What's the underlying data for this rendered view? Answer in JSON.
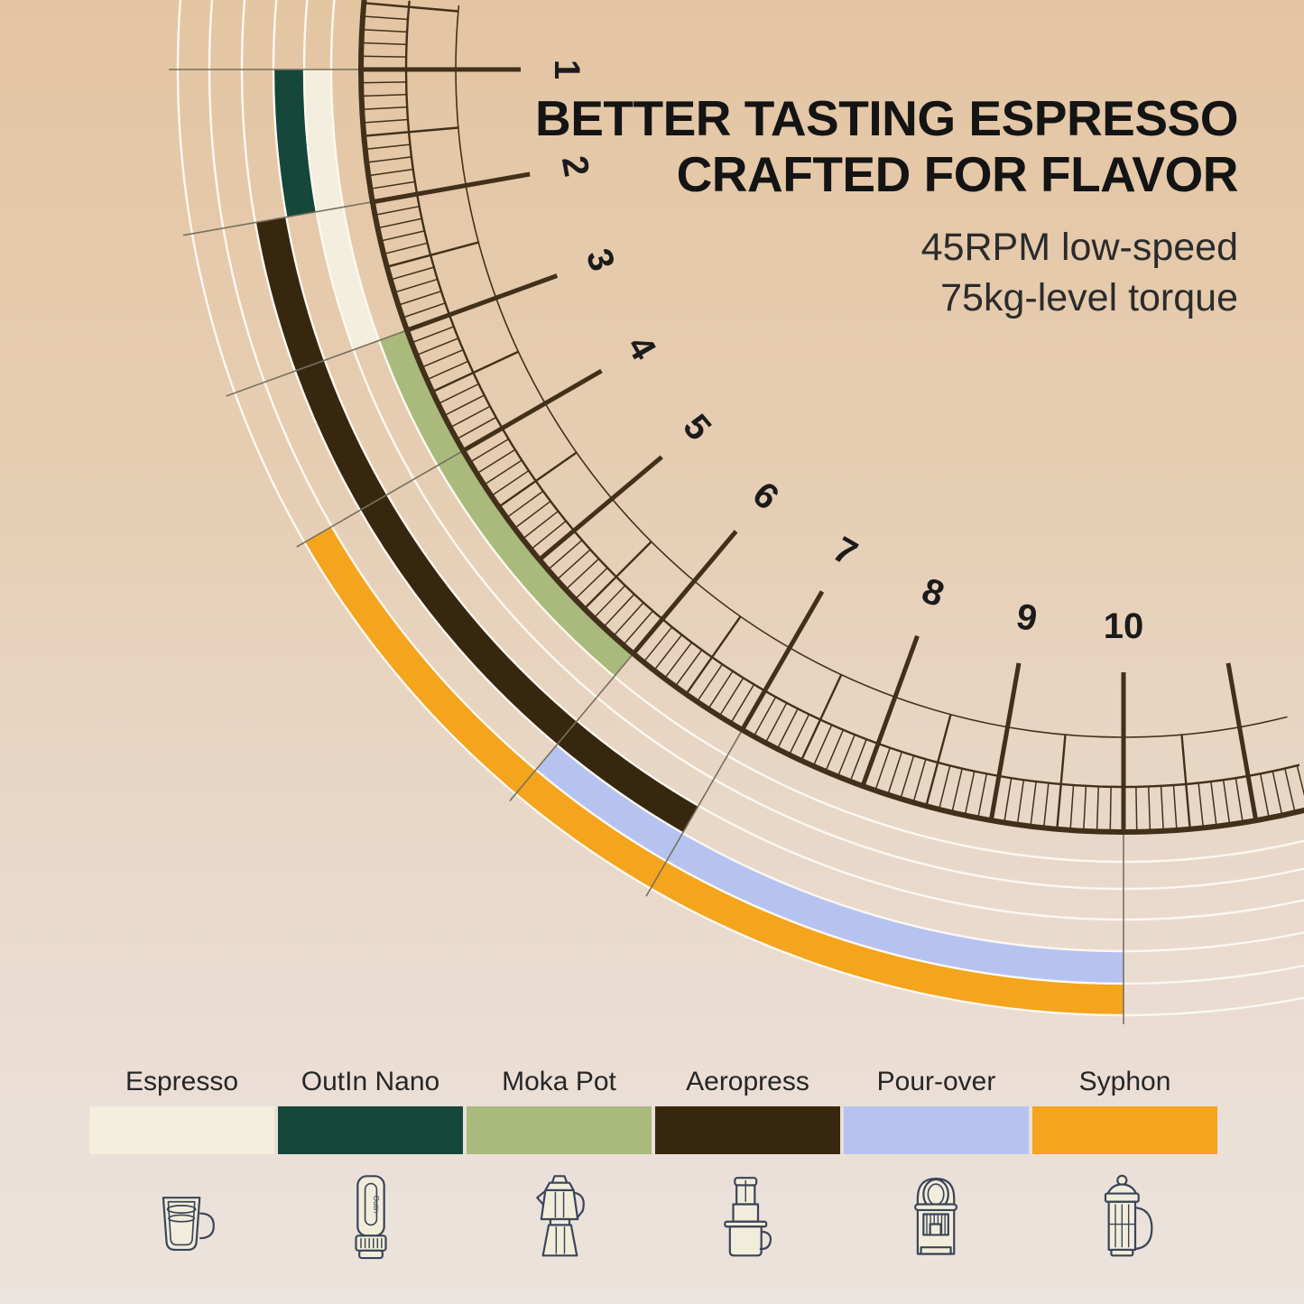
{
  "headline": {
    "line1": "BETTER TASTING ESPRESSO",
    "line2": "CRAFTED FOR FLAVOR"
  },
  "subhead": {
    "line1": "45RPM low-speed",
    "line2": "75kg-level torque"
  },
  "chart_data": {
    "type": "bar",
    "subtype": "radial-range-dial",
    "title": "Grind size ranges by brew method",
    "scale": {
      "min": 1,
      "max": 10,
      "tick_labels": [
        "1",
        "2",
        "3",
        "4",
        "5",
        "6",
        "7",
        "8",
        "9",
        "10"
      ],
      "minor_step": 0.1,
      "medium_step": 0.5,
      "major_step": 1
    },
    "series": [
      {
        "name": "Moka Pot",
        "range": [
          3,
          6
        ],
        "color": "#a9ba7c",
        "track": 0
      },
      {
        "name": "Espresso",
        "range": [
          1,
          3
        ],
        "color": "#f3eedd",
        "track": 1
      },
      {
        "name": "OutIn Nano",
        "range": [
          1,
          2
        ],
        "color": "#15473b",
        "track": 2
      },
      {
        "name": "Aeropress",
        "range": [
          2,
          7
        ],
        "color": "#38270f",
        "track": 3
      },
      {
        "name": "Pour-over",
        "range": [
          6,
          10
        ],
        "color": "#b6c3f1",
        "track": 4
      },
      {
        "name": "Syphon",
        "range": [
          4,
          10
        ],
        "color": "#f4a41d",
        "track": 5
      }
    ],
    "grid": true,
    "legend_position": "bottom"
  },
  "legend": {
    "items": [
      {
        "label": "Espresso",
        "color": "#f3eedd",
        "icon": "espresso-cup-icon"
      },
      {
        "label": "OutIn Nano",
        "color": "#15473b",
        "icon": "outin-nano-icon"
      },
      {
        "label": "Moka Pot",
        "color": "#a9ba7c",
        "icon": "moka-pot-icon"
      },
      {
        "label": "Aeropress",
        "color": "#38270f",
        "icon": "aeropress-icon"
      },
      {
        "label": "Pour-over",
        "color": "#b6c3f1",
        "icon": "capsule-machine-icon"
      },
      {
        "label": "Syphon",
        "color": "#f4a41d",
        "icon": "syphon-icon"
      }
    ],
    "icon_brand_text": "Outin"
  },
  "colors": {
    "background_top": "#e4c5a2",
    "background_bottom": "#ebe3dd",
    "dial_ink": "#42301a",
    "number_ink": "#1b1b1b",
    "track_line": "#fbf8f1",
    "grid_line": "#77705f",
    "icon_ink": "#3b4459",
    "icon_fill": "#f2edda",
    "headline_ink": "#141414",
    "subhead_ink": "#2b2b2b",
    "label_ink": "#262626"
  }
}
